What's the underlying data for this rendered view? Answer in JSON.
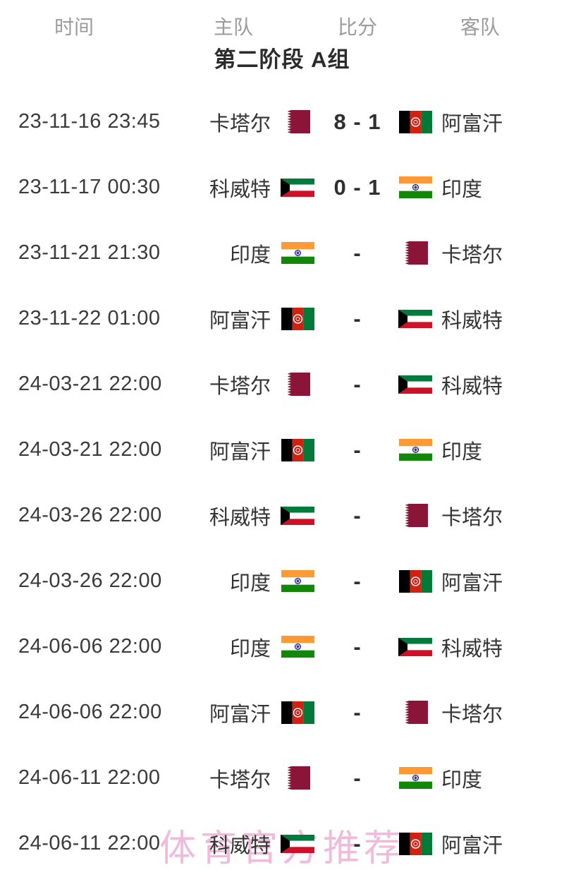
{
  "header": {
    "columns": [
      "时间",
      "主队",
      "比分",
      "客队"
    ]
  },
  "stage_title": "第二阶段 A组",
  "watermark": "体育官方推荐",
  "colors": {
    "header_gray": "#9b9b9b",
    "text_dark": "#333333",
    "title_dark": "#2b2b2b",
    "watermark_pink": "#eeaed6",
    "qatar_maroon": "#8A1538",
    "kuwait_green": "#007A3D",
    "kuwait_red": "#CE1126",
    "india_saffron": "#FF9933",
    "india_green": "#138808",
    "india_navy": "#000080",
    "afghan_black": "#000000",
    "afghan_red": "#D32011",
    "afghan_green": "#007A36"
  },
  "matches": [
    {
      "time": "23-11-16 23:45",
      "home": "卡塔尔",
      "home_flag": "qatar",
      "score": "8 - 1",
      "away": "阿富汗",
      "away_flag": "afghanistan"
    },
    {
      "time": "23-11-17 00:30",
      "home": "科威特",
      "home_flag": "kuwait",
      "score": "0 - 1",
      "away": "印度",
      "away_flag": "india"
    },
    {
      "time": "23-11-21 21:30",
      "home": "印度",
      "home_flag": "india",
      "score": "-",
      "away": "卡塔尔",
      "away_flag": "qatar"
    },
    {
      "time": "23-11-22 01:00",
      "home": "阿富汗",
      "home_flag": "afghanistan",
      "score": "-",
      "away": "科威特",
      "away_flag": "kuwait"
    },
    {
      "time": "24-03-21 22:00",
      "home": "卡塔尔",
      "home_flag": "qatar",
      "score": "-",
      "away": "科威特",
      "away_flag": "kuwait"
    },
    {
      "time": "24-03-21 22:00",
      "home": "阿富汗",
      "home_flag": "afghanistan",
      "score": "-",
      "away": "印度",
      "away_flag": "india"
    },
    {
      "time": "24-03-26 22:00",
      "home": "科威特",
      "home_flag": "kuwait",
      "score": "-",
      "away": "卡塔尔",
      "away_flag": "qatar"
    },
    {
      "time": "24-03-26 22:00",
      "home": "印度",
      "home_flag": "india",
      "score": "-",
      "away": "阿富汗",
      "away_flag": "afghanistan"
    },
    {
      "time": "24-06-06 22:00",
      "home": "印度",
      "home_flag": "india",
      "score": "-",
      "away": "科威特",
      "away_flag": "kuwait"
    },
    {
      "time": "24-06-06 22:00",
      "home": "阿富汗",
      "home_flag": "afghanistan",
      "score": "-",
      "away": "卡塔尔",
      "away_flag": "qatar"
    },
    {
      "time": "24-06-11 22:00",
      "home": "卡塔尔",
      "home_flag": "qatar",
      "score": "-",
      "away": "印度",
      "away_flag": "india"
    },
    {
      "time": "24-06-11 22:00",
      "home": "科威特",
      "home_flag": "kuwait",
      "score": "-",
      "away": "阿富汗",
      "away_flag": "afghanistan"
    }
  ]
}
